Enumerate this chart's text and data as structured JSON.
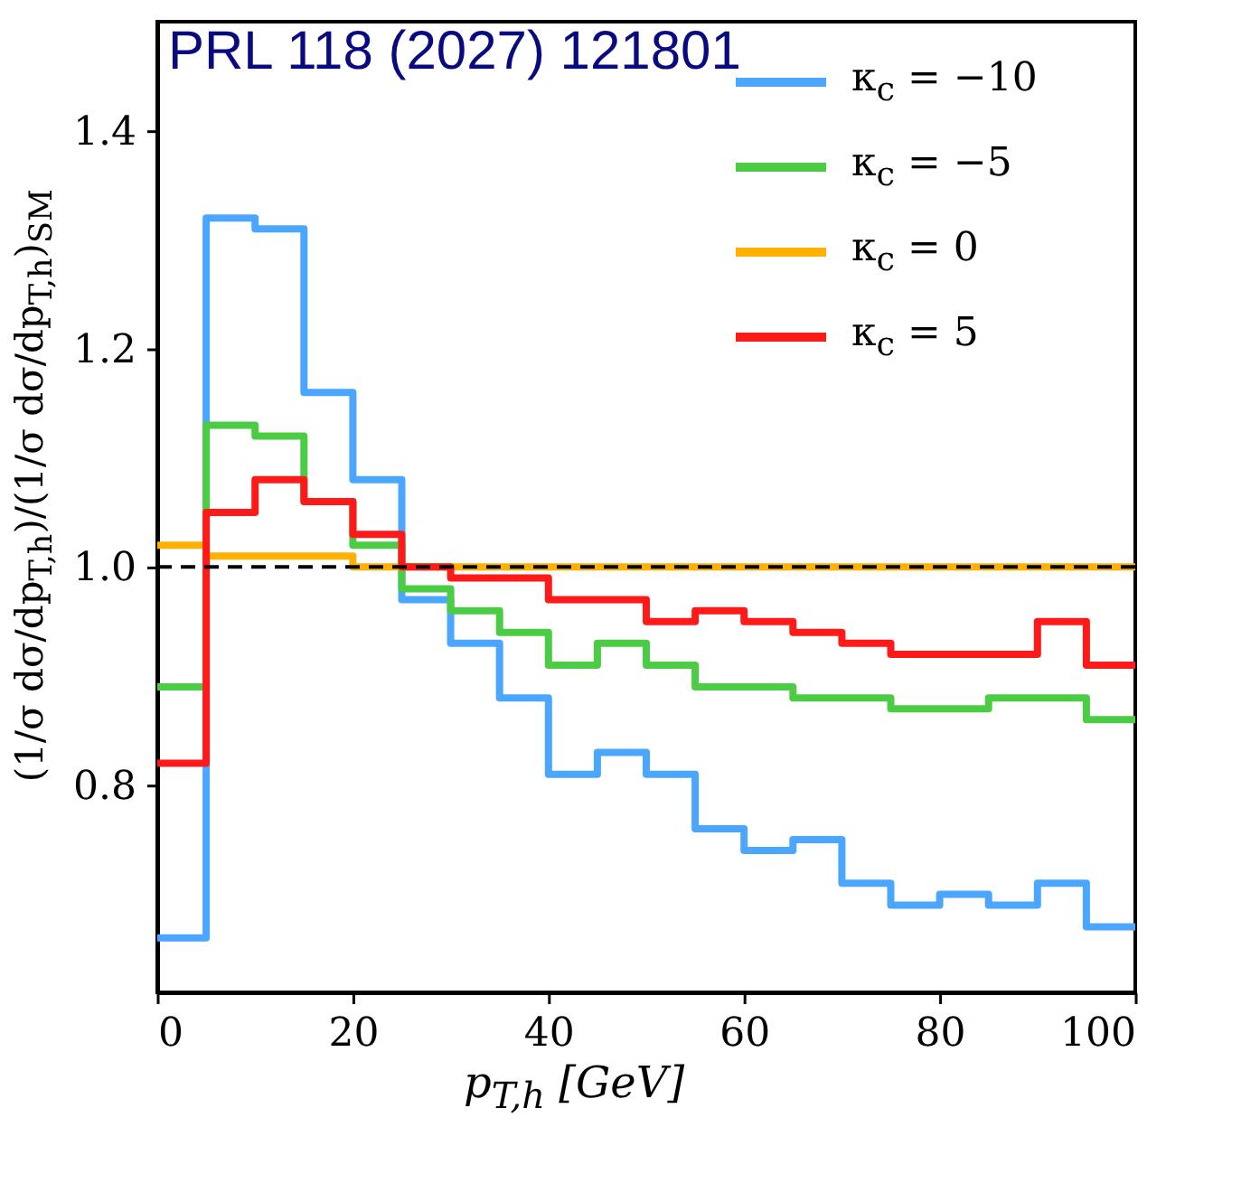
{
  "chart_data": {
    "type": "histogram",
    "xlabel": "p$_{T,h}$ [GeV]",
    "ylabel": "(1/σ dσ/dp$_{T,h}$)/(1/σ dσ/dp$_{T,h}$)$_{SM}$",
    "annotations": [
      "PRL 118 (2027) 121801"
    ],
    "bins": [
      0,
      5,
      10,
      15,
      20,
      25,
      30,
      35,
      40,
      45,
      50,
      55,
      60,
      65,
      70,
      75,
      80,
      85,
      90,
      95,
      100
    ],
    "series": [
      {
        "name": "κ$_{c}$ = −10",
        "color": "#4ba6ff",
        "values": [
          0.66,
          1.32,
          1.31,
          1.16,
          1.08,
          0.97,
          0.93,
          0.88,
          0.81,
          0.83,
          0.81,
          0.76,
          0.74,
          0.75,
          0.71,
          0.69,
          0.7,
          0.69,
          0.71,
          0.67
        ]
      },
      {
        "name": "κ$_{c}$ = −5",
        "color": "#4ccc44",
        "values": [
          0.89,
          1.13,
          1.12,
          1.06,
          1.02,
          0.98,
          0.96,
          0.94,
          0.91,
          0.93,
          0.91,
          0.89,
          0.89,
          0.88,
          0.88,
          0.87,
          0.87,
          0.88,
          0.88,
          0.86
        ]
      },
      {
        "name": "κ$_{c}$ = 0",
        "color": "#ffb000",
        "values": [
          1.02,
          1.01,
          1.01,
          1.01,
          1.0,
          1.0,
          1.0,
          1.0,
          1.0,
          1.0,
          1.0,
          1.0,
          1.0,
          1.0,
          1.0,
          1.0,
          1.0,
          1.0,
          1.0,
          1.0
        ]
      },
      {
        "name": "κ$_{c}$ = 5",
        "color": "#ff1a1a",
        "values": [
          0.82,
          1.05,
          1.08,
          1.06,
          1.03,
          1.0,
          0.99,
          0.99,
          0.97,
          0.97,
          0.95,
          0.96,
          0.95,
          0.94,
          0.93,
          0.92,
          0.92,
          0.92,
          0.95,
          0.91
        ]
      }
    ],
    "ref_lines": [
      {
        "axis": "y",
        "value": 1.0,
        "color": "#000000",
        "line_style": "dashed"
      }
    ],
    "xlim": [
      0,
      100
    ],
    "xticks": [
      0,
      20,
      40,
      60,
      80,
      100
    ],
    "ylim": [
      0.61,
      1.5
    ],
    "yticks": [
      0.8,
      {
        "value": 1.0,
        "label": "1.0"
      },
      1.2,
      1.4
    ],
    "legend": "top right",
    "grid": false,
    "line_style": "solid"
  }
}
